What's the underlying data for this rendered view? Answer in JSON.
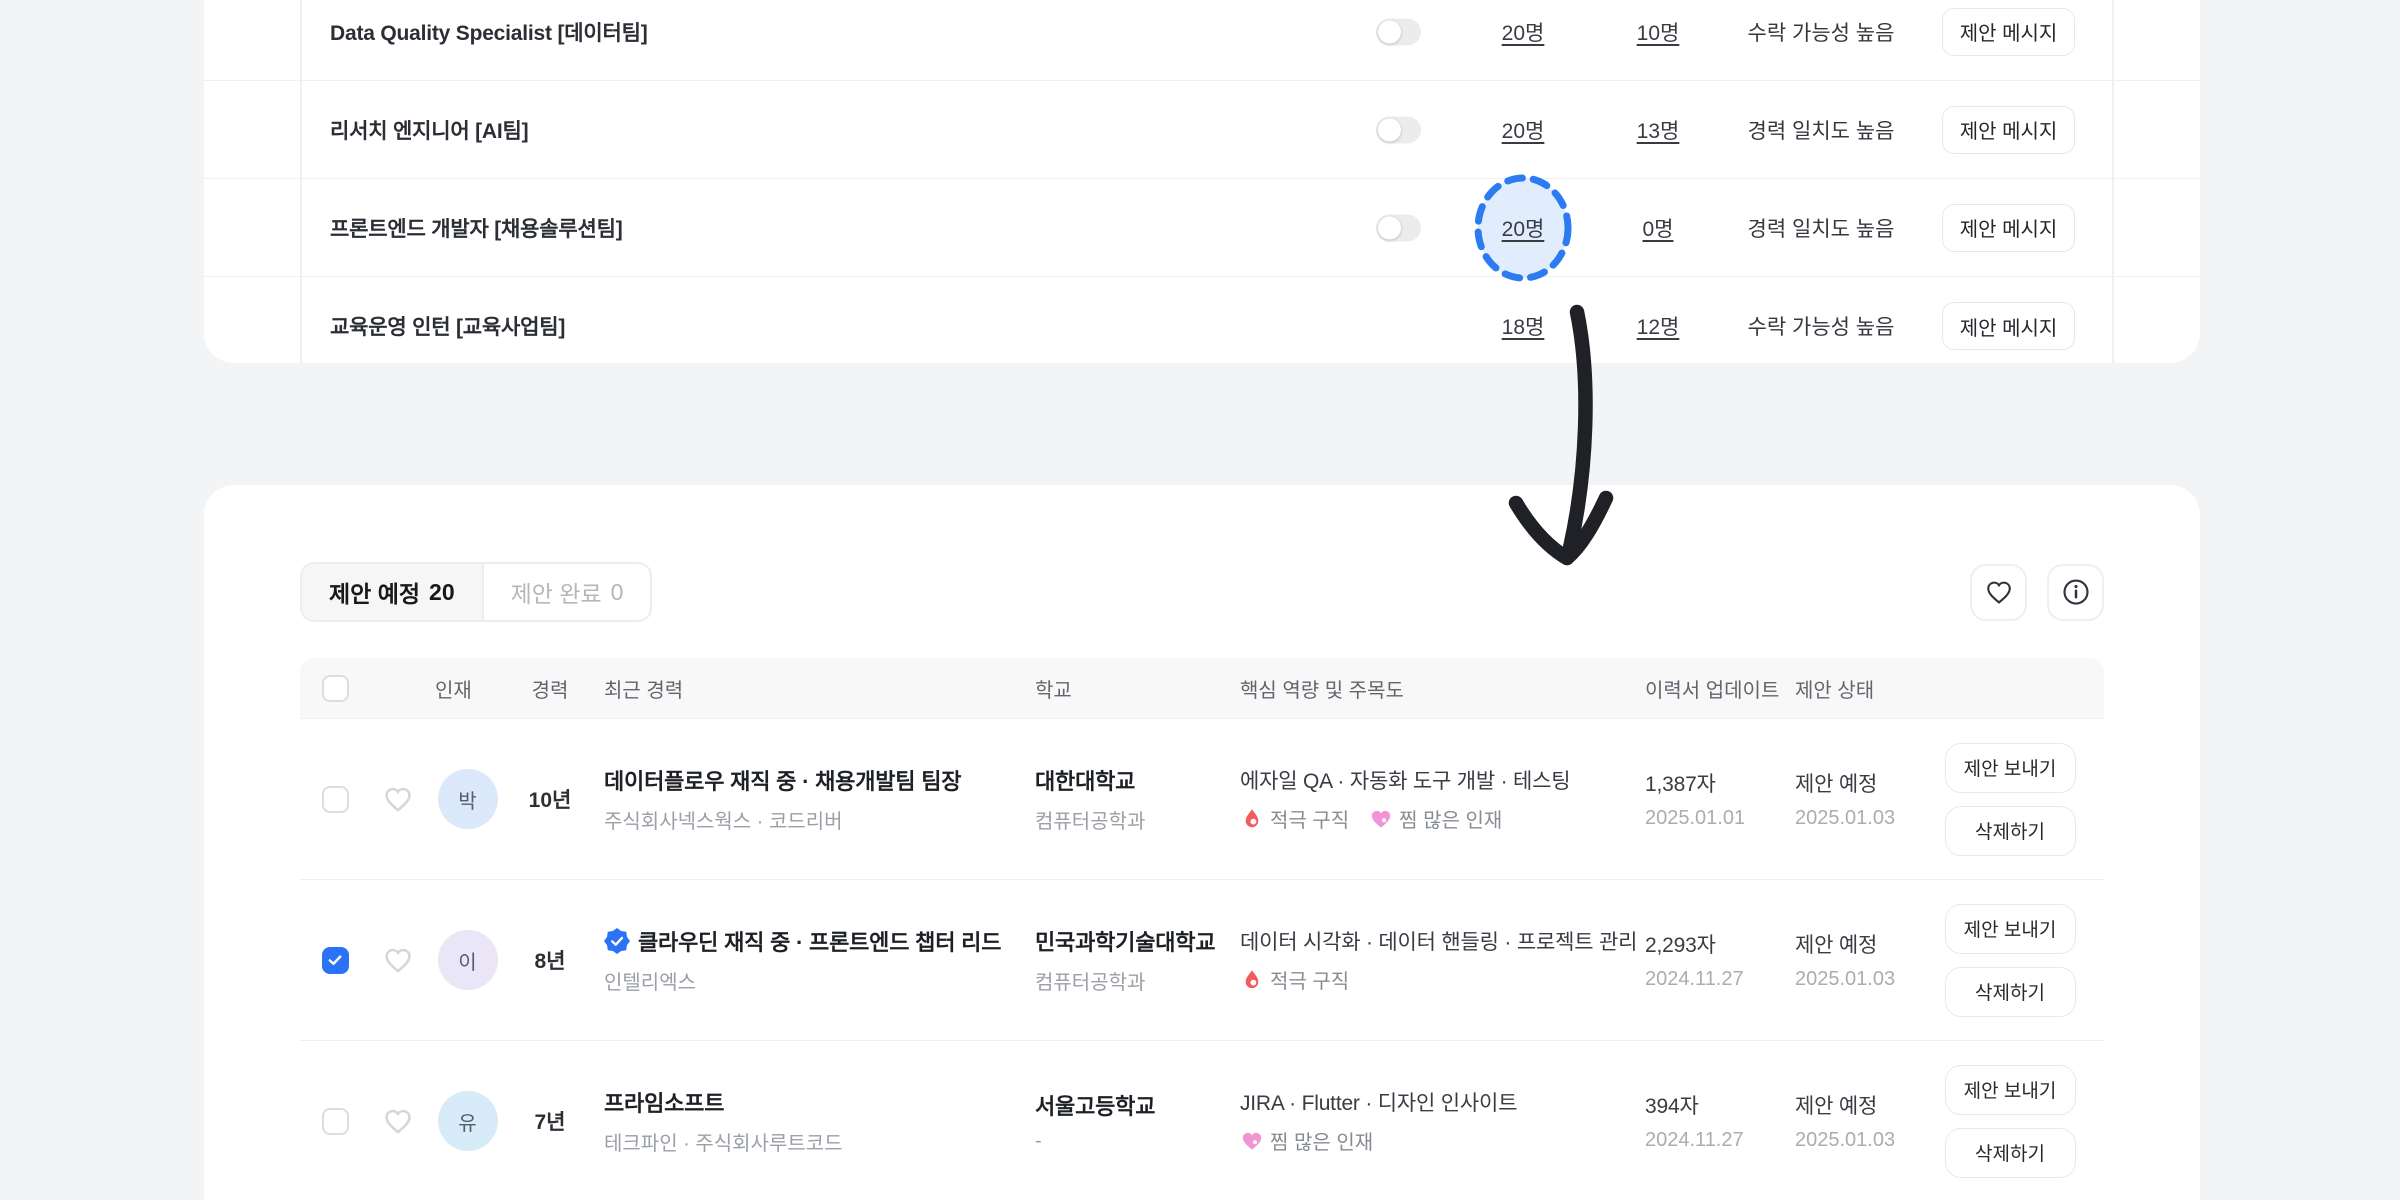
{
  "positions_panel": {
    "rows": [
      {
        "title": "Data Quality Specialist [데이터팀]",
        "has_toggle": true,
        "toggle_on": false,
        "count_total": "20명",
        "count_sub": "10명",
        "status": "수락 가능성 높음",
        "action_label": "제안 메시지",
        "count_highlighted": false
      },
      {
        "title": "리서치 엔지니어 [AI팀]",
        "has_toggle": true,
        "toggle_on": false,
        "count_total": "20명",
        "count_sub": "13명",
        "status": "경력 일치도 높음",
        "action_label": "제안 메시지",
        "count_highlighted": false
      },
      {
        "title": "프론트엔드 개발자 [채용솔루션팀]",
        "has_toggle": true,
        "toggle_on": false,
        "count_total": "20명",
        "count_sub": "0명",
        "status": "경력 일치도 높음",
        "action_label": "제안 메시지",
        "count_highlighted": true
      },
      {
        "title": "교육운영 인턴 [교육사업팀]",
        "has_toggle": false,
        "toggle_on": false,
        "count_total": "18명",
        "count_sub": "12명",
        "status": "수락 가능성 높음",
        "action_label": "제안 메시지",
        "count_highlighted": false
      }
    ]
  },
  "proposals_panel": {
    "tabs": [
      {
        "label": "제안 예정",
        "count": "20",
        "active": true
      },
      {
        "label": "제안 완료",
        "count": "0",
        "active": false
      }
    ],
    "icon_buttons": [
      "heart-icon",
      "info-icon"
    ],
    "table": {
      "headers": {
        "talent": "인재",
        "experience": "경력",
        "recent_career": "최근 경력",
        "school": "학교",
        "skills": "핵심 역량 및 주목도",
        "resume_update": "이력서 업데이트",
        "proposal_status": "제안 상태"
      },
      "rows": [
        {
          "checked": false,
          "initial": "박",
          "avatar_bg": "#dbe9fb",
          "years": "10년",
          "verified": false,
          "career_title": "데이터플로우 재직 중 · 채용개발팀 팀장",
          "career_sub": "주식회사넥스웍스 · 코드리버",
          "school": "대한대학교",
          "school_sub": "컴퓨터공학과",
          "skills": "에자일 QA · 자동화 도구 개발 · 테스팅",
          "badges": [
            {
              "icon": "flame-icon",
              "label": "적극 구직"
            },
            {
              "icon": "pink-heart-icon",
              "label": "찜 많은 인재"
            }
          ],
          "resume_len": "1,387자",
          "resume_date": "2025.01.01",
          "status": "제안 예정",
          "status_date": "2025.01.03",
          "actions": [
            "제안 보내기",
            "삭제하기"
          ]
        },
        {
          "checked": true,
          "initial": "이",
          "avatar_bg": "#eae6f8",
          "years": "8년",
          "verified": true,
          "career_title": "클라우딘 재직 중 · 프론트엔드 챕터 리드",
          "career_sub": "인텔리엑스",
          "school": "민국과학기술대학교",
          "school_sub": "컴퓨터공학과",
          "skills": "데이터 시각화 · 데이터 핸들링 · 프로젝트 관리",
          "badges": [
            {
              "icon": "flame-icon",
              "label": "적극 구직"
            }
          ],
          "resume_len": "2,293자",
          "resume_date": "2024.11.27",
          "status": "제안 예정",
          "status_date": "2025.01.03",
          "actions": [
            "제안 보내기",
            "삭제하기"
          ]
        },
        {
          "checked": false,
          "initial": "유",
          "avatar_bg": "#d7ebf9",
          "years": "7년",
          "verified": false,
          "career_title": "프라임소프트",
          "career_sub": "테크파인 · 주식회사루트코드",
          "school": "서울고등학교",
          "school_sub": "-",
          "skills": "JIRA · Flutter · 디자인 인사이트",
          "badges": [
            {
              "icon": "pink-heart-icon",
              "label": "찜 많은 인재"
            }
          ],
          "resume_len": "394자",
          "resume_date": "2024.11.27",
          "status": "제안 예정",
          "status_date": "2025.01.03",
          "actions": [
            "제안 보내기",
            "삭제하기"
          ]
        }
      ]
    }
  },
  "colors": {
    "accent_blue": "#2b72f6",
    "highlight_blue": "#2d7bf1",
    "flame_red": "#f15c5c",
    "pink": "#f293d3",
    "page_bg": "#f3f4f6"
  }
}
